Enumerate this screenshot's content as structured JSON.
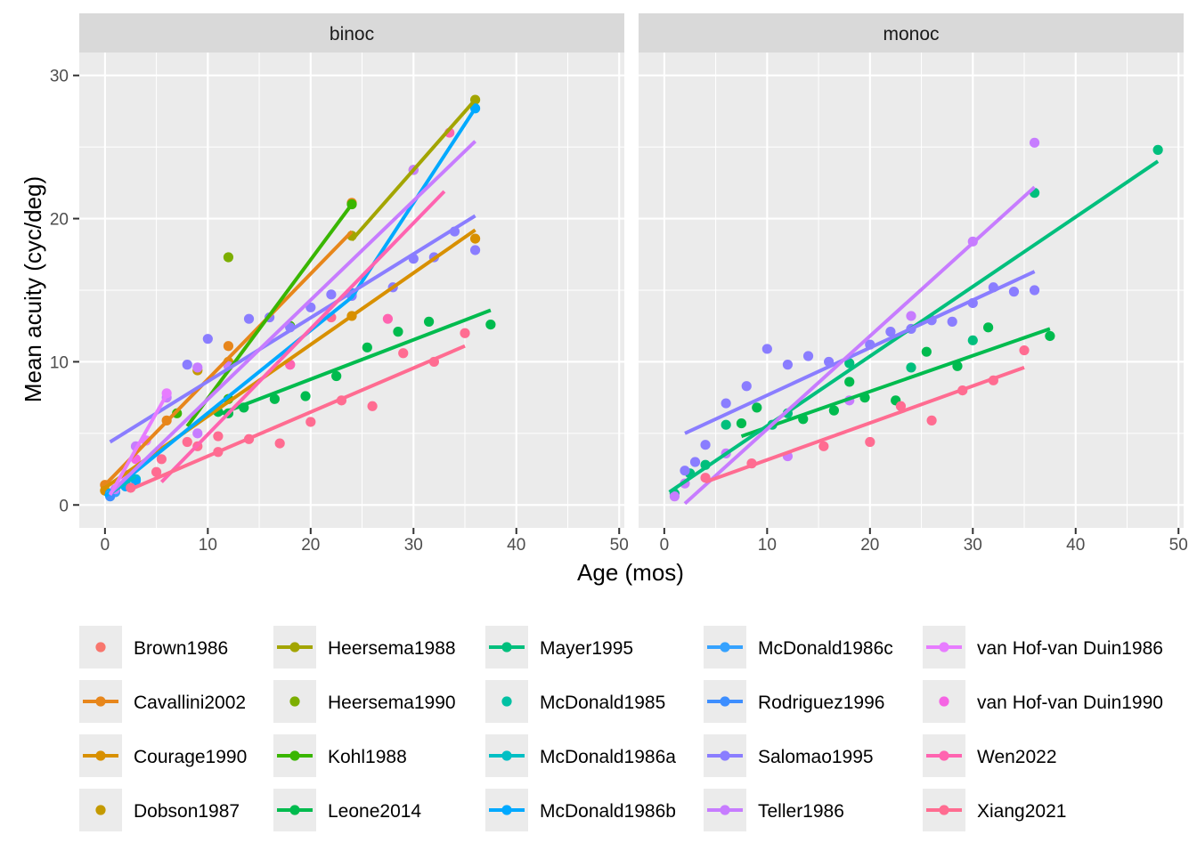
{
  "chart_data": {
    "type": "scatter",
    "xlabel": "Age (mos)",
    "ylabel": "Mean acuity (cyc/deg)",
    "xlim": [
      -2.5,
      50.5
    ],
    "ylim": [
      -1.6,
      31.6
    ],
    "x_ticks": [
      0,
      10,
      20,
      30,
      40,
      50
    ],
    "y_ticks": [
      0,
      10,
      20,
      30
    ],
    "grid": true,
    "legend_position": "bottom",
    "panels": [
      {
        "name": "binoc",
        "series": [
          {
            "name": "Brown1986",
            "color": "#F8766D",
            "points": [],
            "line": null
          },
          {
            "name": "Cavallini2002",
            "color": "#E7861B",
            "points": [
              [
                0,
                1.4
              ],
              [
                6,
                5.9
              ],
              [
                12,
                11.1
              ],
              [
                24,
                21.1
              ]
            ],
            "line": [
              [
                0,
                1.4
              ],
              [
                24,
                19.1
              ]
            ]
          },
          {
            "name": "Courage1990",
            "color": "#D89000",
            "points": [
              [
                0,
                1.0
              ],
              [
                12,
                10.0
              ],
              [
                24,
                13.2
              ],
              [
                36,
                18.6
              ]
            ],
            "line": [
              [
                0,
                1.2
              ],
              [
                36,
                19.2
              ]
            ]
          },
          {
            "name": "Dobson1987",
            "color": "#C49A00",
            "points": [
              [
                9,
                9.4
              ]
            ],
            "line": null
          },
          {
            "name": "Heersema1988",
            "color": "#A3A500",
            "points": [
              [
                24,
                18.8
              ],
              [
                30,
                23.4
              ],
              [
                36,
                28.3
              ]
            ],
            "line": [
              [
                24,
                18.5
              ],
              [
                36,
                28.3
              ]
            ]
          },
          {
            "name": "Heersema1990",
            "color": "#7CAE00",
            "points": [
              [
                12,
                17.3
              ]
            ],
            "line": null
          },
          {
            "name": "Kohl1988",
            "color": "#39B600",
            "points": [
              [
                7,
                6.4
              ],
              [
                12,
                7.4
              ],
              [
                18,
                12.5
              ],
              [
                24,
                21.0
              ]
            ],
            "line": [
              [
                8,
                5.5
              ],
              [
                24,
                21.0
              ]
            ]
          },
          {
            "name": "Leone2014",
            "color": "#00BB4E",
            "points": [
              [
                11,
                6.5
              ],
              [
                12,
                6.4
              ],
              [
                13.5,
                6.8
              ],
              [
                16.5,
                7.4
              ],
              [
                19.5,
                7.6
              ],
              [
                22.5,
                9.0
              ],
              [
                25.5,
                11.0
              ],
              [
                28.5,
                12.1
              ],
              [
                31.5,
                12.8
              ],
              [
                37.5,
                12.6
              ]
            ],
            "line": [
              [
                11,
                6.3
              ],
              [
                37.5,
                13.6
              ]
            ]
          },
          {
            "name": "Mayer1995",
            "color": "#00BF7D",
            "points": [],
            "line": null
          },
          {
            "name": "McDonald1985",
            "color": "#00C1A3",
            "points": [],
            "line": null
          },
          {
            "name": "McDonald1986a",
            "color": "#00BFC4",
            "points": [
              [
                0.5,
                0.8
              ],
              [
                1,
                1.0
              ],
              [
                2,
                1.5
              ],
              [
                3,
                1.8
              ]
            ],
            "line": [
              [
                0.5,
                0.8
              ],
              [
                3,
                2.0
              ]
            ]
          },
          {
            "name": "McDonald1986b",
            "color": "#00A9FF",
            "points": [
              [
                0.5,
                0.8
              ],
              [
                1,
                0.9
              ],
              [
                2,
                1.3
              ],
              [
                3,
                1.7
              ],
              [
                24,
                14.8
              ],
              [
                36,
                27.7
              ]
            ],
            "line": [
              [
                0,
                0.6
              ],
              [
                11,
                7.0
              ],
              [
                24,
                14.5
              ],
              [
                36,
                27.7
              ]
            ]
          },
          {
            "name": "McDonald1986c",
            "color": "#35A2FF",
            "points": [
              [
                0.5,
                0.7
              ],
              [
                1,
                0.9
              ]
            ],
            "line": null
          },
          {
            "name": "Rodriguez1996",
            "color": "#3D8EFF",
            "points": [
              [
                0.5,
                0.6
              ]
            ],
            "line": null
          },
          {
            "name": "Salomao1995",
            "color": "#8A7DFF",
            "points": [
              [
                8,
                9.8
              ],
              [
                10,
                11.6
              ],
              [
                14,
                13.0
              ],
              [
                16,
                13.1
              ],
              [
                18,
                12.4
              ],
              [
                20,
                13.8
              ],
              [
                22,
                14.7
              ],
              [
                24,
                14.6
              ],
              [
                28,
                15.2
              ],
              [
                30,
                17.2
              ],
              [
                32,
                17.3
              ],
              [
                34,
                19.1
              ],
              [
                36,
                17.8
              ]
            ],
            "line": [
              [
                0.5,
                4.4
              ],
              [
                36,
                20.2
              ]
            ]
          },
          {
            "name": "Teller1986",
            "color": "#C77CFF",
            "points": [
              [
                1,
                1.1
              ],
              [
                2,
                2.1
              ],
              [
                3,
                4.1
              ],
              [
                4,
                4.5
              ],
              [
                6,
                7.5
              ],
              [
                9,
                5.0
              ],
              [
                9,
                9.6
              ],
              [
                12,
                9.7
              ],
              [
                18,
                9.8
              ],
              [
                30,
                23.4
              ]
            ],
            "line": [
              [
                0.5,
                0.8
              ],
              [
                36,
                25.4
              ]
            ]
          },
          {
            "name": "van Hof-van Duin1986",
            "color": "#E77CFF",
            "points": [
              [
                2,
                2.0
              ],
              [
                4,
                4.5
              ],
              [
                6,
                7.8
              ]
            ],
            "line": [
              [
                0.5,
                0.7
              ],
              [
                6,
                7.7
              ]
            ]
          },
          {
            "name": "van Hof-van Duin1990",
            "color": "#F564E3",
            "points": [
              [
                3,
                3.2
              ]
            ],
            "line": null
          },
          {
            "name": "Wen2022",
            "color": "#FF64B0",
            "points": [
              [
                18,
                9.8
              ],
              [
                27.5,
                13.0
              ],
              [
                33.5,
                26.0
              ]
            ],
            "line": [
              [
                5.5,
                1.6
              ],
              [
                33,
                21.9
              ]
            ]
          },
          {
            "name": "Xiang2021",
            "color": "#FF6C91",
            "points": [
              [
                2.5,
                1.2
              ],
              [
                5,
                2.3
              ],
              [
                5.5,
                3.2
              ],
              [
                8,
                4.4
              ],
              [
                9,
                4.1
              ],
              [
                11,
                4.8
              ],
              [
                11,
                3.7
              ],
              [
                14,
                4.6
              ],
              [
                17,
                4.3
              ],
              [
                20,
                5.8
              ],
              [
                22,
                13.1
              ],
              [
                23,
                7.3
              ],
              [
                26,
                6.9
              ],
              [
                29,
                10.6
              ],
              [
                32,
                10.0
              ],
              [
                35,
                12.0
              ]
            ],
            "line": [
              [
                2.5,
                1.1
              ],
              [
                35,
                11.1
              ]
            ]
          }
        ]
      },
      {
        "name": "monoc",
        "series": [
          {
            "name": "Leone2014",
            "color": "#00BB4E",
            "points": [
              [
                7.5,
                5.7
              ],
              [
                9,
                6.8
              ],
              [
                13.5,
                6.0
              ],
              [
                16.5,
                6.6
              ],
              [
                18,
                8.6
              ],
              [
                19.5,
                7.5
              ],
              [
                22.5,
                7.3
              ],
              [
                25.5,
                10.7
              ],
              [
                28.5,
                9.7
              ],
              [
                31.5,
                12.4
              ],
              [
                37.5,
                11.8
              ]
            ],
            "line": [
              [
                7.5,
                4.8
              ],
              [
                37.5,
                12.3
              ]
            ]
          },
          {
            "name": "Mayer1995",
            "color": "#00BF7D",
            "points": [
              [
                1,
                0.8
              ],
              [
                2.5,
                2.2
              ],
              [
                4,
                2.8
              ],
              [
                6,
                5.6
              ],
              [
                10.5,
                5.6
              ],
              [
                12,
                6.4
              ],
              [
                18,
                9.9
              ],
              [
                24,
                9.6
              ],
              [
                30,
                11.5
              ],
              [
                36,
                21.8
              ],
              [
                48,
                24.8
              ]
            ],
            "line": [
              [
                0.5,
                0.9
              ],
              [
                48,
                24.0
              ]
            ]
          },
          {
            "name": "Salomao1995",
            "color": "#8A7DFF",
            "points": [
              [
                2,
                2.4
              ],
              [
                3,
                3.0
              ],
              [
                4,
                4.2
              ],
              [
                6,
                7.1
              ],
              [
                8,
                8.3
              ],
              [
                10,
                10.9
              ],
              [
                12,
                9.8
              ],
              [
                14,
                10.4
              ],
              [
                16,
                10.0
              ],
              [
                20,
                11.2
              ],
              [
                22,
                12.1
              ],
              [
                24,
                12.3
              ],
              [
                26,
                12.9
              ],
              [
                28,
                12.8
              ],
              [
                30,
                14.1
              ],
              [
                32,
                15.2
              ],
              [
                34,
                14.9
              ],
              [
                36,
                15.0
              ]
            ],
            "line": [
              [
                2,
                5.0
              ],
              [
                36,
                16.3
              ]
            ]
          },
          {
            "name": "Teller1986",
            "color": "#C77CFF",
            "points": [
              [
                1,
                0.6
              ],
              [
                2,
                1.5
              ],
              [
                6,
                3.6
              ],
              [
                12,
                3.4
              ],
              [
                18,
                7.3
              ],
              [
                24,
                13.2
              ],
              [
                30,
                18.4
              ],
              [
                36,
                25.3
              ]
            ],
            "line": [
              [
                2,
                0.1
              ],
              [
                36,
                22.2
              ]
            ]
          },
          {
            "name": "Xiang2021",
            "color": "#FF6C91",
            "points": [
              [
                4,
                1.9
              ],
              [
                8.5,
                2.9
              ],
              [
                15.5,
                4.1
              ],
              [
                20,
                4.4
              ],
              [
                23,
                6.9
              ],
              [
                26,
                5.9
              ],
              [
                29,
                8.0
              ],
              [
                32,
                8.7
              ],
              [
                35,
                10.8
              ]
            ],
            "line": [
              [
                4,
                1.6
              ],
              [
                35,
                9.6
              ]
            ]
          }
        ]
      }
    ],
    "legend": [
      {
        "name": "Brown1986",
        "color": "#F8766D",
        "key": "point"
      },
      {
        "name": "Cavallini2002",
        "color": "#E7861B",
        "key": "line-point"
      },
      {
        "name": "Courage1990",
        "color": "#D89000",
        "key": "line-point"
      },
      {
        "name": "Dobson1987",
        "color": "#C49A00",
        "key": "point"
      },
      {
        "name": "Heersema1988",
        "color": "#A3A500",
        "key": "line-point"
      },
      {
        "name": "Heersema1990",
        "color": "#7CAE00",
        "key": "point"
      },
      {
        "name": "Kohl1988",
        "color": "#39B600",
        "key": "line-point"
      },
      {
        "name": "Leone2014",
        "color": "#00BB4E",
        "key": "line-point"
      },
      {
        "name": "Mayer1995",
        "color": "#00BF7D",
        "key": "line-point"
      },
      {
        "name": "McDonald1985",
        "color": "#00C1A3",
        "key": "point"
      },
      {
        "name": "McDonald1986a",
        "color": "#00BFC4",
        "key": "line-point"
      },
      {
        "name": "McDonald1986b",
        "color": "#00A9FF",
        "key": "line-point"
      },
      {
        "name": "McDonald1986c",
        "color": "#35A2FF",
        "key": "line-point"
      },
      {
        "name": "Rodriguez1996",
        "color": "#3D8EFF",
        "key": "line-point"
      },
      {
        "name": "Salomao1995",
        "color": "#8A7DFF",
        "key": "line-point"
      },
      {
        "name": "Teller1986",
        "color": "#C77CFF",
        "key": "line-point"
      },
      {
        "name": "van Hof-van Duin1986",
        "color": "#E77CFF",
        "key": "line-point"
      },
      {
        "name": "van Hof-van Duin1990",
        "color": "#F564E3",
        "key": "point"
      },
      {
        "name": "Wen2022",
        "color": "#FF64B0",
        "key": "line-point"
      },
      {
        "name": "Xiang2021",
        "color": "#FF6C91",
        "key": "line-point"
      }
    ]
  }
}
